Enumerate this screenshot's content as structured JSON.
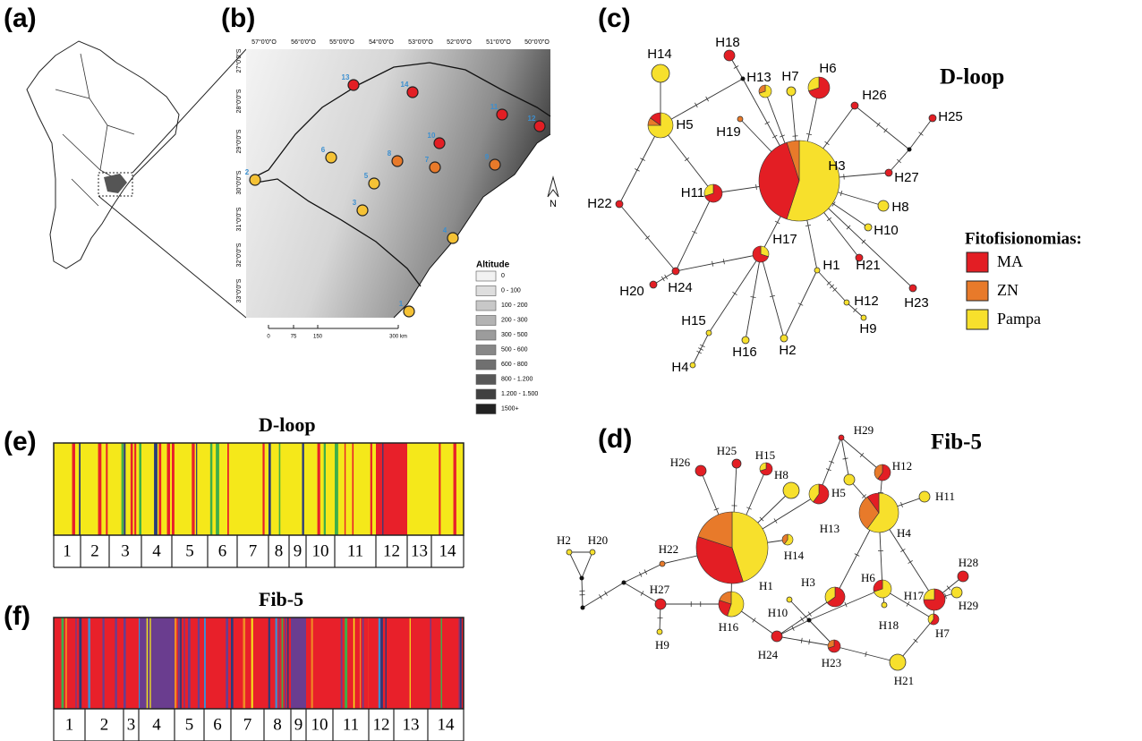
{
  "panel_labels": [
    "(a)",
    "(b)",
    "(c)",
    "(d)",
    "(e)",
    "(f)"
  ],
  "map": {
    "longitude_labels": [
      "57°0'0\"O",
      "56°0'0\"O",
      "55°0'0\"O",
      "54°0'0\"O",
      "53°0'0\"O",
      "52°0'0\"O",
      "51°0'0\"O",
      "50°0'0\"O"
    ],
    "latitude_labels": [
      "27°0'0\"S",
      "28°0'0\"S",
      "29°0'0\"S",
      "30°0'0\"S",
      "31°0'0\"S",
      "32°0'0\"S",
      "33°0'0\"S"
    ],
    "sites": [
      "1",
      "2",
      "3",
      "4",
      "5",
      "6",
      "7",
      "8",
      "9",
      "10",
      "11",
      "12",
      "13",
      "14"
    ],
    "north": "N",
    "scale_labels": [
      "0",
      "75",
      "150",
      "300 km"
    ],
    "legend_title": "Altitude",
    "legend_classes": [
      "0",
      "0 - 100",
      "100 - 200",
      "200 - 300",
      "300 - 500",
      "500 - 600",
      "600 - 800",
      "800 - 1.200",
      "1.200 - 1.500",
      "1500+"
    ]
  },
  "dloop_network": {
    "title": "D-loop",
    "haplotypes": [
      "H1",
      "H2",
      "H3",
      "H4",
      "H5",
      "H6",
      "H7",
      "H8",
      "H9",
      "H10",
      "H11",
      "H12",
      "H13",
      "H14",
      "H15",
      "H16",
      "H17",
      "H18",
      "H19",
      "H20",
      "H21",
      "H22",
      "H23",
      "H24",
      "H25",
      "H26",
      "H27"
    ]
  },
  "fib5_network": {
    "title": "Fib-5",
    "haplotypes": [
      "H1",
      "H2",
      "H3",
      "H4",
      "H5",
      "H6",
      "H7",
      "H8",
      "H9",
      "H10",
      "H11",
      "H12",
      "H13",
      "H14",
      "H15",
      "H16",
      "H17",
      "H18",
      "H20",
      "H21",
      "H22",
      "H23",
      "H24",
      "H25",
      "H26",
      "H27",
      "H28",
      "H29",
      "H29"
    ]
  },
  "legend": {
    "title": "Fitofisionomias:",
    "items": [
      "MA",
      "ZN",
      "Pampa"
    ]
  },
  "dloop_structure": {
    "title": "D-loop",
    "populations": [
      "1",
      "2",
      "3",
      "4",
      "5",
      "6",
      "7",
      "8",
      "9",
      "10",
      "11",
      "12",
      "13",
      "14"
    ]
  },
  "fib5_structure": {
    "title": "Fib-5",
    "populations": [
      "1",
      "2",
      "3",
      "4",
      "5",
      "6",
      "7",
      "8",
      "9",
      "10",
      "11",
      "12",
      "13",
      "14"
    ]
  }
}
